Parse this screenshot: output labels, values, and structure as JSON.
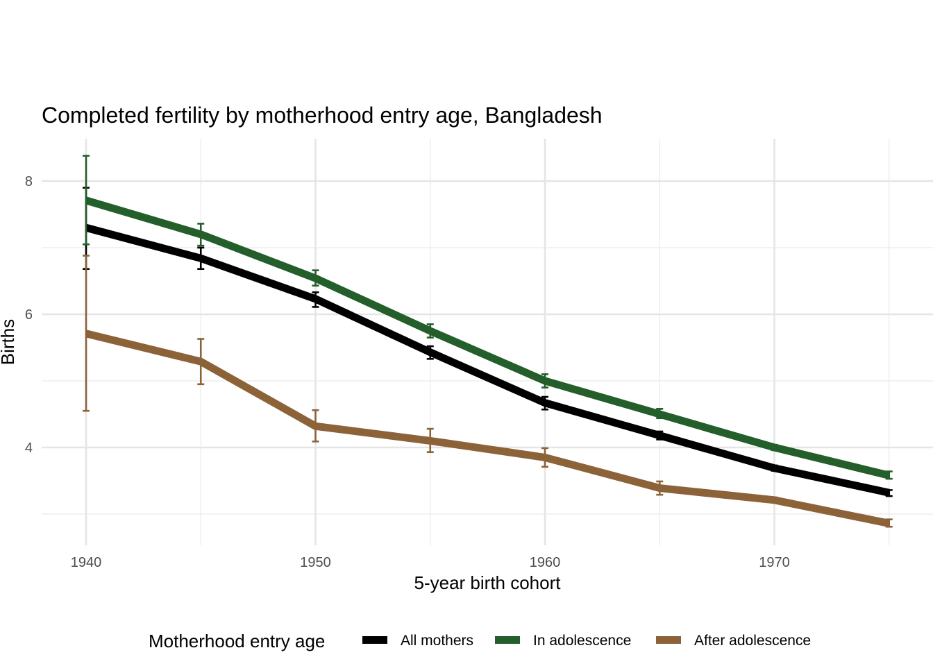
{
  "chart_data": {
    "type": "line",
    "title": "Completed fertility by motherhood entry age,  Bangladesh",
    "xlabel": "5-year birth cohort",
    "ylabel": "Births",
    "x": [
      1940,
      1945,
      1950,
      1955,
      1960,
      1965,
      1970,
      1975
    ],
    "x_ticks": [
      1940,
      1950,
      1960,
      1970
    ],
    "x_tick_labels": [
      "1940",
      "1950",
      "1960",
      "1970"
    ],
    "y_ticks": [
      4,
      6,
      8
    ],
    "y_tick_labels": [
      "4",
      "6",
      "8"
    ],
    "y_minor_gridlines": [
      3,
      5,
      7
    ],
    "x_minor_gridlines": [
      1945,
      1955,
      1965,
      1975
    ],
    "xlim": [
      1938.1,
      1976.9
    ],
    "ylim": [
      2.45,
      8.65
    ],
    "grid": true,
    "legend": {
      "title": "Motherhood entry age",
      "position": "bottom"
    },
    "series": [
      {
        "name": "All mothers",
        "color": "#000000",
        "values": [
          7.3,
          6.84,
          6.23,
          5.43,
          4.67,
          4.18,
          3.69,
          3.32
        ],
        "ci_low": [
          6.68,
          6.68,
          6.11,
          5.33,
          4.57,
          4.12,
          3.65,
          3.27
        ],
        "ci_high": [
          7.9,
          7.0,
          6.33,
          5.52,
          4.76,
          4.24,
          3.73,
          3.36
        ]
      },
      {
        "name": "In adolescence",
        "color": "#235E2B",
        "values": [
          7.71,
          7.2,
          6.54,
          5.75,
          5.0,
          4.5,
          4.0,
          3.58
        ],
        "ci_low": [
          7.05,
          7.03,
          6.43,
          5.65,
          4.9,
          4.44,
          3.96,
          3.53
        ],
        "ci_high": [
          8.38,
          7.36,
          6.66,
          5.85,
          5.1,
          4.58,
          4.04,
          3.64
        ]
      },
      {
        "name": "After adolescence",
        "color": "#8C6239",
        "values": [
          5.71,
          5.29,
          4.32,
          4.1,
          3.85,
          3.39,
          3.21,
          2.86
        ],
        "ci_low": [
          4.55,
          4.95,
          4.09,
          3.93,
          3.71,
          3.29,
          3.17,
          2.81
        ],
        "ci_high": [
          6.88,
          5.63,
          4.56,
          4.28,
          3.99,
          3.49,
          3.25,
          2.92
        ]
      }
    ]
  }
}
